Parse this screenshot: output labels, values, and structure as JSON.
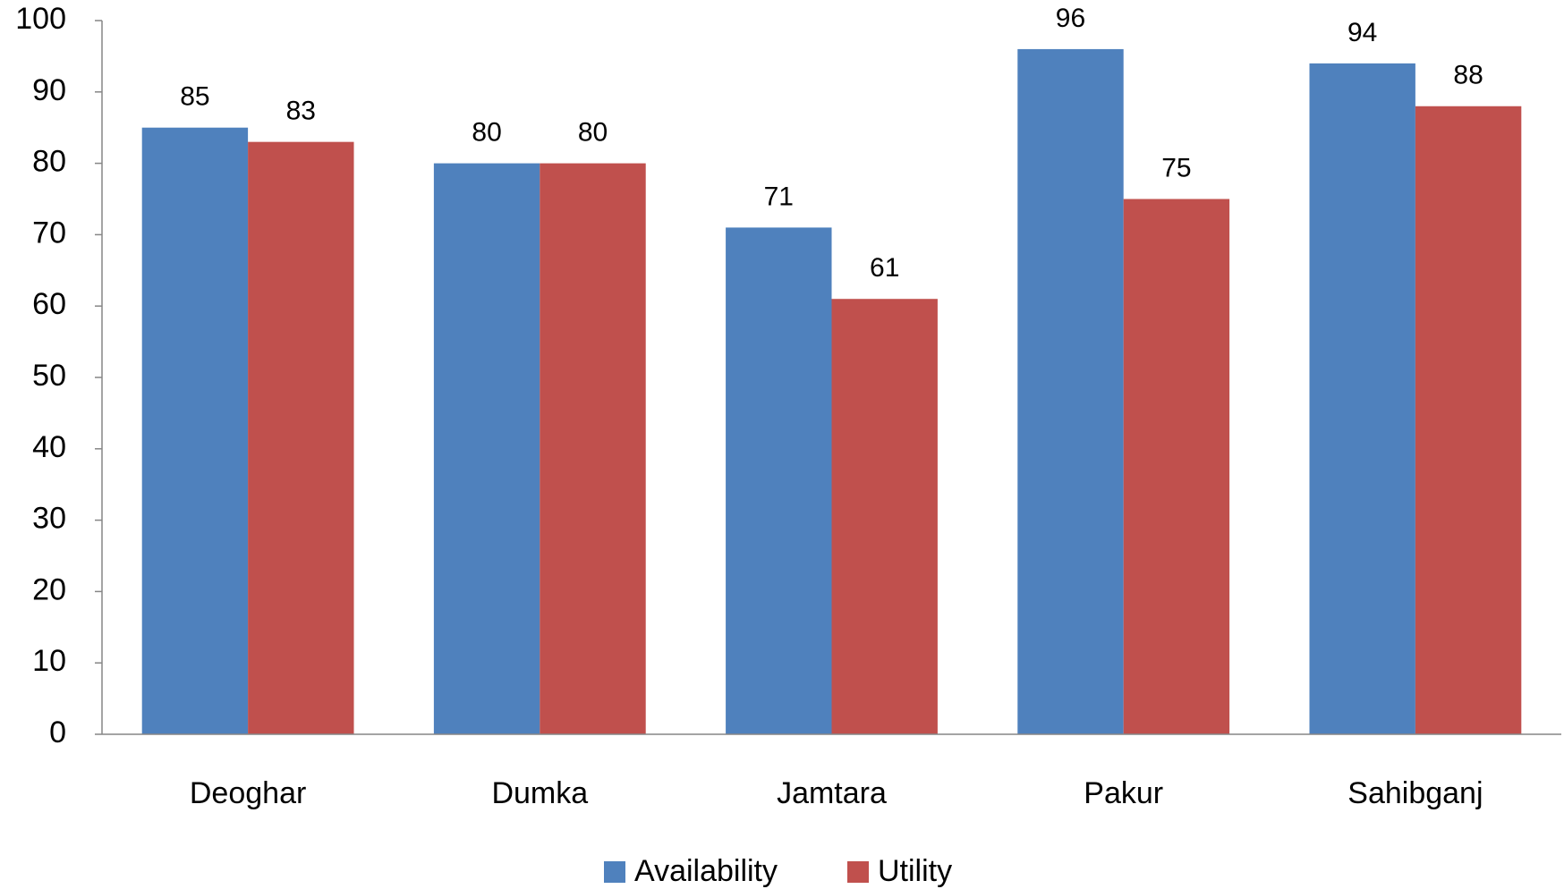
{
  "chart_data": {
    "type": "bar",
    "categories": [
      "Deoghar",
      "Dumka",
      "Jamtara",
      "Pakur",
      "Sahibganj"
    ],
    "series": [
      {
        "name": "Availability",
        "color": "#4f81bd",
        "values": [
          85,
          80,
          71,
          96,
          94
        ]
      },
      {
        "name": "Utility",
        "color": "#c0504d",
        "values": [
          83,
          80,
          61,
          75,
          88
        ]
      }
    ],
    "ylim": [
      0,
      100
    ],
    "yticks": [
      0,
      10,
      20,
      30,
      40,
      50,
      60,
      70,
      80,
      90,
      100
    ],
    "grid": false,
    "legend": "bottom"
  }
}
